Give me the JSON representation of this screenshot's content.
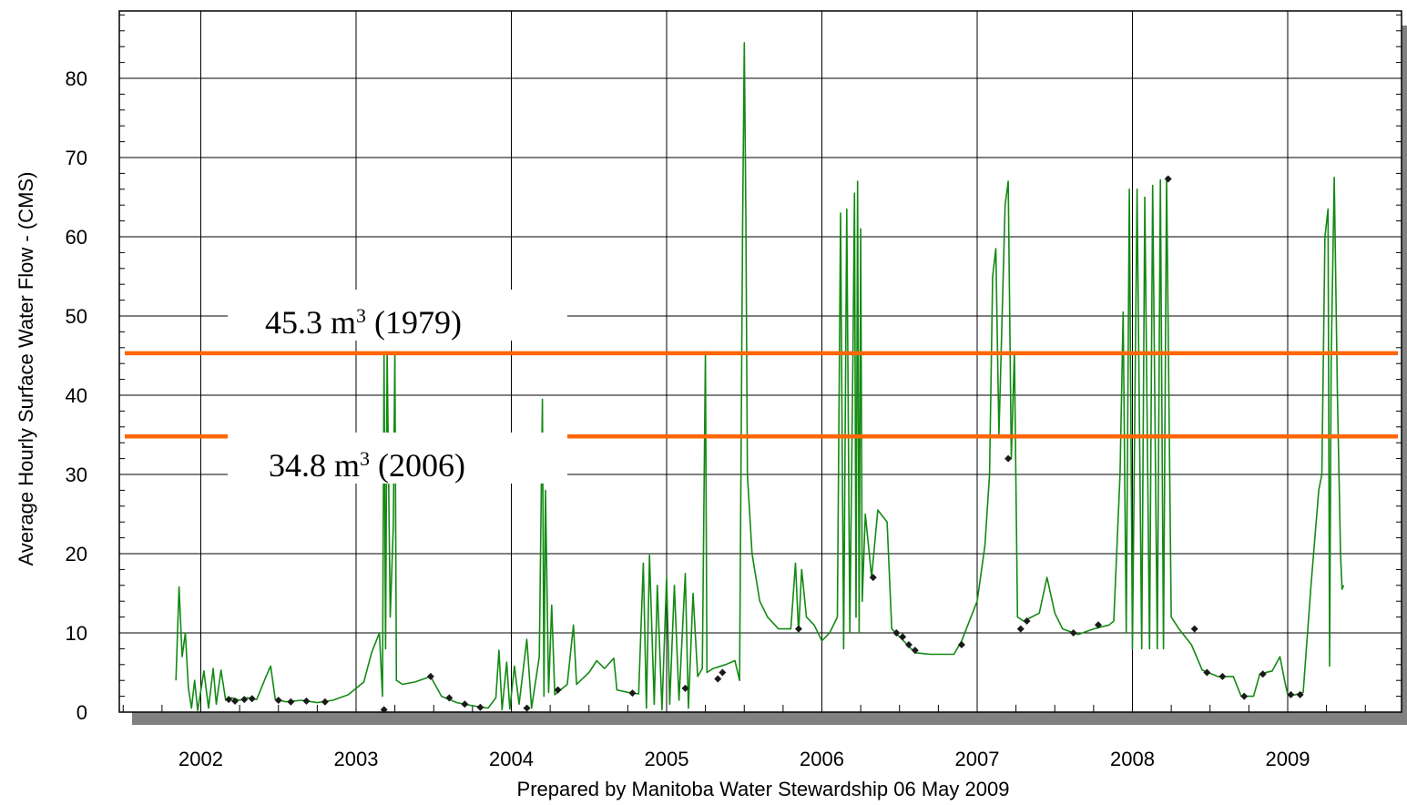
{
  "chart_data": {
    "type": "line",
    "title": "",
    "xlabel": "Prepared by Manitoba Water Stewardship 06 May 2009",
    "ylabel": "Average Hourly Surface Water Flow -  (CMS)",
    "xlim": [
      2001.5,
      2009.72
    ],
    "ylim": [
      0,
      88.5
    ],
    "x_ticks": [
      "2002",
      "2003",
      "2004",
      "2005",
      "2006",
      "2007",
      "2008",
      "2009"
    ],
    "y_ticks": [
      "0",
      "10",
      "20",
      "30",
      "40",
      "50",
      "60",
      "70",
      "80"
    ],
    "grid": true,
    "series": [
      {
        "color": "#138a13",
        "points": [
          [
            2001.84,
            4
          ],
          [
            2001.86,
            15.8
          ],
          [
            2001.88,
            7
          ],
          [
            2001.9,
            10
          ],
          [
            2001.92,
            3
          ],
          [
            2001.94,
            0.5
          ],
          [
            2001.96,
            4
          ],
          [
            2001.98,
            0.2
          ],
          [
            2002.02,
            5.2
          ],
          [
            2002.05,
            0.5
          ],
          [
            2002.08,
            5.5
          ],
          [
            2002.1,
            1
          ],
          [
            2002.13,
            5.3
          ],
          [
            2002.16,
            1.5
          ],
          [
            2002.2,
            1.8
          ],
          [
            2002.25,
            1.5
          ],
          [
            2002.3,
            1.8
          ],
          [
            2002.36,
            1.6
          ],
          [
            2002.42,
            4.5
          ],
          [
            2002.45,
            5.8
          ],
          [
            2002.48,
            1.6
          ],
          [
            2002.55,
            1.3
          ],
          [
            2002.65,
            1.5
          ],
          [
            2002.75,
            1.2
          ],
          [
            2002.85,
            1.5
          ],
          [
            2002.95,
            2.2
          ],
          [
            2003.05,
            3.8
          ],
          [
            2003.1,
            7.5
          ],
          [
            2003.15,
            10
          ],
          [
            2003.17,
            2
          ],
          [
            2003.18,
            45.5
          ],
          [
            2003.19,
            8
          ],
          [
            2003.2,
            45.5
          ],
          [
            2003.22,
            12
          ],
          [
            2003.24,
            23.5
          ],
          [
            2003.25,
            45.5
          ],
          [
            2003.26,
            4
          ],
          [
            2003.3,
            3.5
          ],
          [
            2003.38,
            3.8
          ],
          [
            2003.48,
            4.5
          ],
          [
            2003.55,
            2
          ],
          [
            2003.65,
            1.2
          ],
          [
            2003.75,
            0.8
          ],
          [
            2003.85,
            0.5
          ],
          [
            2003.9,
            1.8
          ],
          [
            2003.92,
            7.8
          ],
          [
            2003.94,
            0.3
          ],
          [
            2003.97,
            6.3
          ],
          [
            2003.99,
            0.4
          ],
          [
            2004.02,
            5.8
          ],
          [
            2004.05,
            1
          ],
          [
            2004.1,
            9.2
          ],
          [
            2004.13,
            0.5
          ],
          [
            2004.18,
            7
          ],
          [
            2004.2,
            39.5
          ],
          [
            2004.21,
            2
          ],
          [
            2004.22,
            28
          ],
          [
            2004.24,
            2.5
          ],
          [
            2004.26,
            13.5
          ],
          [
            2004.28,
            2.2
          ],
          [
            2004.36,
            3.5
          ],
          [
            2004.4,
            11
          ],
          [
            2004.42,
            3.5
          ],
          [
            2004.5,
            5
          ],
          [
            2004.55,
            6.5
          ],
          [
            2004.6,
            5.5
          ],
          [
            2004.66,
            6.8
          ],
          [
            2004.68,
            2.8
          ],
          [
            2004.75,
            2.5
          ],
          [
            2004.82,
            2.3
          ],
          [
            2004.85,
            18.8
          ],
          [
            2004.87,
            0.5
          ],
          [
            2004.89,
            19.8
          ],
          [
            2004.92,
            1
          ],
          [
            2004.94,
            16
          ],
          [
            2004.97,
            0.3
          ],
          [
            2005.0,
            17
          ],
          [
            2005.02,
            1
          ],
          [
            2005.05,
            16
          ],
          [
            2005.08,
            1.5
          ],
          [
            2005.12,
            17.5
          ],
          [
            2005.14,
            0.5
          ],
          [
            2005.17,
            15
          ],
          [
            2005.2,
            4.5
          ],
          [
            2005.23,
            5.5
          ],
          [
            2005.25,
            45.5
          ],
          [
            2005.26,
            5
          ],
          [
            2005.3,
            5.5
          ],
          [
            2005.38,
            6
          ],
          [
            2005.44,
            6.5
          ],
          [
            2005.47,
            4
          ],
          [
            2005.49,
            62
          ],
          [
            2005.5,
            84.5
          ],
          [
            2005.51,
            63
          ],
          [
            2005.52,
            30
          ],
          [
            2005.55,
            20
          ],
          [
            2005.6,
            14
          ],
          [
            2005.65,
            12
          ],
          [
            2005.72,
            10.5
          ],
          [
            2005.8,
            10.5
          ],
          [
            2005.83,
            18.8
          ],
          [
            2005.85,
            10
          ],
          [
            2005.87,
            18
          ],
          [
            2005.9,
            12
          ],
          [
            2005.95,
            11
          ],
          [
            2006.0,
            9
          ],
          [
            2006.05,
            10
          ],
          [
            2006.1,
            12
          ],
          [
            2006.12,
            63
          ],
          [
            2006.14,
            8
          ],
          [
            2006.16,
            63.5
          ],
          [
            2006.18,
            10
          ],
          [
            2006.2,
            45
          ],
          [
            2006.21,
            65.5
          ],
          [
            2006.22,
            12
          ],
          [
            2006.23,
            67
          ],
          [
            2006.24,
            10
          ],
          [
            2006.25,
            61
          ],
          [
            2006.26,
            14
          ],
          [
            2006.28,
            25
          ],
          [
            2006.32,
            17
          ],
          [
            2006.36,
            25.5
          ],
          [
            2006.42,
            24
          ],
          [
            2006.45,
            10.5
          ],
          [
            2006.55,
            8.5
          ],
          [
            2006.6,
            7.5
          ],
          [
            2006.7,
            7.3
          ],
          [
            2006.85,
            7.3
          ],
          [
            2006.9,
            9
          ],
          [
            2007.0,
            14
          ],
          [
            2007.05,
            21
          ],
          [
            2007.08,
            30
          ],
          [
            2007.1,
            55
          ],
          [
            2007.12,
            58.5
          ],
          [
            2007.14,
            35
          ],
          [
            2007.18,
            64
          ],
          [
            2007.2,
            67
          ],
          [
            2007.22,
            32
          ],
          [
            2007.24,
            45.5
          ],
          [
            2007.26,
            12
          ],
          [
            2007.3,
            11.5
          ],
          [
            2007.4,
            12.5
          ],
          [
            2007.45,
            17
          ],
          [
            2007.5,
            12.5
          ],
          [
            2007.55,
            10.5
          ],
          [
            2007.65,
            9.8
          ],
          [
            2007.75,
            10.5
          ],
          [
            2007.85,
            11
          ],
          [
            2007.88,
            11.5
          ],
          [
            2007.92,
            30
          ],
          [
            2007.94,
            50.5
          ],
          [
            2007.96,
            10
          ],
          [
            2007.98,
            66
          ],
          [
            2008.0,
            8
          ],
          [
            2008.03,
            66
          ],
          [
            2008.06,
            8
          ],
          [
            2008.08,
            65
          ],
          [
            2008.11,
            8
          ],
          [
            2008.13,
            66.5
          ],
          [
            2008.16,
            8
          ],
          [
            2008.18,
            67.2
          ],
          [
            2008.2,
            8
          ],
          [
            2008.22,
            67.5
          ],
          [
            2008.25,
            12
          ],
          [
            2008.3,
            10.5
          ],
          [
            2008.38,
            8.5
          ],
          [
            2008.45,
            5.3
          ],
          [
            2008.55,
            4.5
          ],
          [
            2008.65,
            4.5
          ],
          [
            2008.7,
            2
          ],
          [
            2008.78,
            2
          ],
          [
            2008.82,
            4.8
          ],
          [
            2008.9,
            5.2
          ],
          [
            2008.95,
            7
          ],
          [
            2008.98,
            4
          ],
          [
            2009.0,
            2.2
          ],
          [
            2009.05,
            2.2
          ],
          [
            2009.1,
            2.5
          ],
          [
            2009.15,
            16
          ],
          [
            2009.2,
            28
          ],
          [
            2009.22,
            30
          ],
          [
            2009.24,
            60
          ],
          [
            2009.26,
            63.5
          ],
          [
            2009.27,
            5.8
          ],
          [
            2009.28,
            44
          ],
          [
            2009.3,
            67.5
          ],
          [
            2009.32,
            40
          ],
          [
            2009.34,
            20
          ],
          [
            2009.35,
            15.5
          ],
          [
            2009.36,
            16
          ]
        ]
      }
    ],
    "estimated_points": [
      [
        2002.18,
        1.6
      ],
      [
        2002.22,
        1.4
      ],
      [
        2002.28,
        1.6
      ],
      [
        2002.33,
        1.7
      ],
      [
        2002.5,
        1.5
      ],
      [
        2002.58,
        1.3
      ],
      [
        2002.68,
        1.4
      ],
      [
        2002.8,
        1.3
      ],
      [
        2003.18,
        0.3
      ],
      [
        2003.48,
        4.5
      ],
      [
        2003.6,
        1.8
      ],
      [
        2003.7,
        1
      ],
      [
        2003.8,
        0.6
      ],
      [
        2004.1,
        0.5
      ],
      [
        2004.3,
        2.8
      ],
      [
        2004.78,
        2.4
      ],
      [
        2005.12,
        3
      ],
      [
        2005.33,
        4.2
      ],
      [
        2005.36,
        5
      ],
      [
        2005.85,
        10.5
      ],
      [
        2006.33,
        17
      ],
      [
        2006.48,
        10
      ],
      [
        2006.52,
        9.5
      ],
      [
        2006.56,
        8.5
      ],
      [
        2006.6,
        7.8
      ],
      [
        2006.9,
        8.5
      ],
      [
        2007.2,
        32
      ],
      [
        2007.28,
        10.5
      ],
      [
        2007.32,
        11.5
      ],
      [
        2007.62,
        10
      ],
      [
        2007.78,
        11
      ],
      [
        2008.23,
        67.3
      ],
      [
        2008.4,
        10.5
      ],
      [
        2008.48,
        5
      ],
      [
        2008.58,
        4.5
      ],
      [
        2008.72,
        2
      ],
      [
        2008.84,
        4.8
      ],
      [
        2009.02,
        2.2
      ],
      [
        2009.08,
        2.2
      ]
    ],
    "reference_lines": [
      {
        "value": 45.3,
        "text": "45.3 m",
        "sup": "3",
        "year": " (1979)",
        "color": "#ff6600"
      },
      {
        "value": 34.8,
        "text": "34.8 m",
        "sup": "3",
        "year": " (2006)",
        "color": "#ff6600"
      }
    ]
  }
}
